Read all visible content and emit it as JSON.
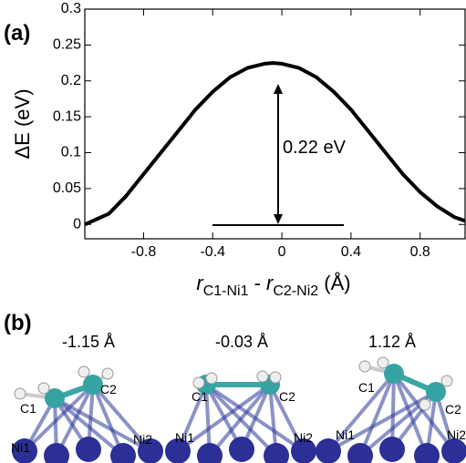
{
  "chart_data": {
    "type": "line",
    "y_label": "ΔE (eV)",
    "x_label_parts": [
      "r",
      "C1-Ni1",
      " - ",
      "r",
      "C2-Ni2",
      " (Å)"
    ],
    "annotation": "0.22 eV",
    "x": [
      -1.14,
      -1.0,
      -0.9,
      -0.8,
      -0.7,
      -0.6,
      -0.5,
      -0.4,
      -0.3,
      -0.2,
      -0.1,
      -0.05,
      0,
      0.1,
      0.2,
      0.3,
      0.4,
      0.5,
      0.6,
      0.7,
      0.8,
      0.9,
      1.0,
      1.06
    ],
    "series": [
      {
        "color": "#000000",
        "values": [
          0,
          0.015,
          0.04,
          0.07,
          0.1,
          0.13,
          0.16,
          0.185,
          0.205,
          0.218,
          0.224,
          0.225,
          0.224,
          0.218,
          0.205,
          0.185,
          0.16,
          0.13,
          0.1,
          0.07,
          0.045,
          0.025,
          0.01,
          0.005
        ]
      }
    ],
    "xlim": [
      -1.14,
      1.06
    ],
    "ylim": [
      -0.02,
      0.3
    ],
    "xticks": [
      -0.8,
      -0.4,
      0,
      0.4,
      0.8
    ],
    "yticks": [
      0,
      0.05,
      0.1,
      0.15,
      0.2,
      0.25,
      0.3
    ]
  },
  "panel_labels": [
    "(a)",
    "(b)"
  ],
  "structures": [
    {
      "caption": "-1.15 Å",
      "atoms": [
        "C1",
        "C2",
        "Ni1",
        "Ni2"
      ]
    },
    {
      "caption": "-0.03 Å",
      "atoms": [
        "C1",
        "C2",
        "Ni1",
        "Ni2"
      ]
    },
    {
      "caption": "1.12 Å",
      "atoms": [
        "C1",
        "C2",
        "Ni1",
        "Ni2"
      ]
    }
  ]
}
